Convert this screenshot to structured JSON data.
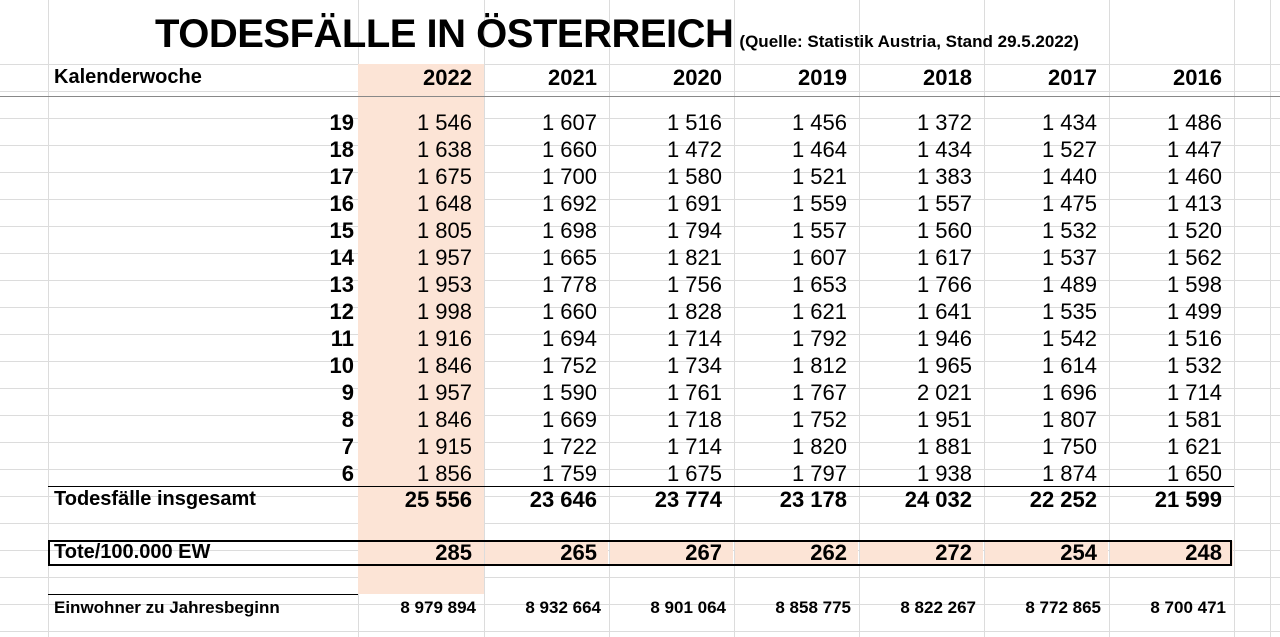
{
  "title": "TODESFÄLLE IN ÖSTERREICH",
  "source": "(Quelle: Statistik Austria, Stand 29.5.2022)",
  "header_label": "Kalenderwoche",
  "years": [
    "2022",
    "2021",
    "2020",
    "2019",
    "2018",
    "2017",
    "2016"
  ],
  "highlight_color": "#fce4d6",
  "weeks": [
    {
      "week": "19",
      "values": [
        "1 546",
        "1 607",
        "1 516",
        "1 456",
        "1 372",
        "1 434",
        "1 486"
      ]
    },
    {
      "week": "18",
      "values": [
        "1 638",
        "1 660",
        "1 472",
        "1 464",
        "1 434",
        "1 527",
        "1 447"
      ]
    },
    {
      "week": "17",
      "values": [
        "1 675",
        "1 700",
        "1 580",
        "1 521",
        "1 383",
        "1 440",
        "1 460"
      ]
    },
    {
      "week": "16",
      "values": [
        "1 648",
        "1 692",
        "1 691",
        "1 559",
        "1 557",
        "1 475",
        "1 413"
      ]
    },
    {
      "week": "15",
      "values": [
        "1 805",
        "1 698",
        "1 794",
        "1 557",
        "1 560",
        "1 532",
        "1 520"
      ]
    },
    {
      "week": "14",
      "values": [
        "1 957",
        "1 665",
        "1 821",
        "1 607",
        "1 617",
        "1 537",
        "1 562"
      ]
    },
    {
      "week": "13",
      "values": [
        "1 953",
        "1 778",
        "1 756",
        "1 653",
        "1 766",
        "1 489",
        "1 598"
      ]
    },
    {
      "week": "12",
      "values": [
        "1 998",
        "1 660",
        "1 828",
        "1 621",
        "1 641",
        "1 535",
        "1 499"
      ]
    },
    {
      "week": "11",
      "values": [
        "1 916",
        "1 694",
        "1 714",
        "1 792",
        "1 946",
        "1 542",
        "1 516"
      ]
    },
    {
      "week": "10",
      "values": [
        "1 846",
        "1 752",
        "1 734",
        "1 812",
        "1 965",
        "1 614",
        "1 532"
      ]
    },
    {
      "week": "9",
      "values": [
        "1 957",
        "1 590",
        "1 761",
        "1 767",
        "2 021",
        "1 696",
        "1 714"
      ]
    },
    {
      "week": "8",
      "values": [
        "1 846",
        "1 669",
        "1 718",
        "1 752",
        "1 951",
        "1 807",
        "1 581"
      ]
    },
    {
      "week": "7",
      "values": [
        "1 915",
        "1 722",
        "1 714",
        "1 820",
        "1 881",
        "1 750",
        "1 621"
      ]
    },
    {
      "week": "6",
      "values": [
        "1 856",
        "1 759",
        "1 675",
        "1 797",
        "1 938",
        "1 874",
        "1 650"
      ]
    }
  ],
  "totals": {
    "label": "Todesfälle insgesamt",
    "values": [
      "25 556",
      "23 646",
      "23 774",
      "23 178",
      "24 032",
      "22 252",
      "21 599"
    ]
  },
  "per100k": {
    "label": "Tote/100.000 EW",
    "values": [
      "285",
      "265",
      "267",
      "262",
      "272",
      "254",
      "248"
    ]
  },
  "population": {
    "label": "Einwohner zu Jahresbeginn",
    "values": [
      "8 979 894",
      "8 932 664",
      "8 901 064",
      "8 858 775",
      "8 822 267",
      "8 772 865",
      "8 700 471"
    ]
  }
}
